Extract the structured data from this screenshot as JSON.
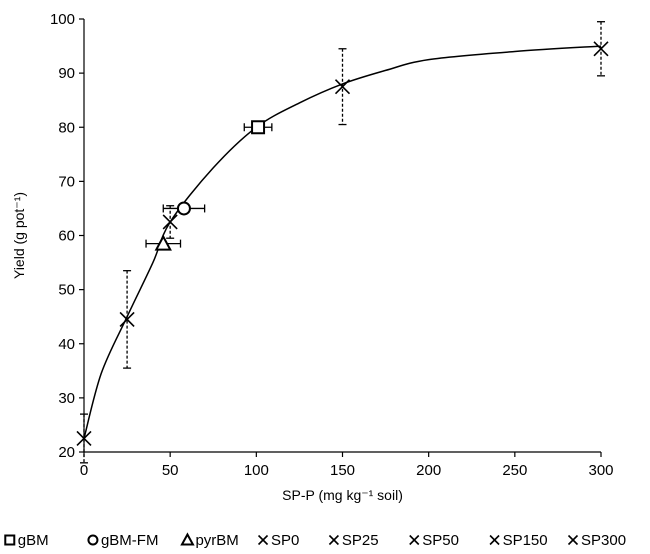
{
  "chart_data": {
    "type": "scatter",
    "xlabel": "SP-P (mg kg⁻¹ soil)",
    "ylabel": "Yield (g pot⁻¹)",
    "xlim": [
      0,
      300
    ],
    "ylim": [
      20,
      100
    ],
    "x_ticks": [
      "0",
      "50",
      "100",
      "150",
      "200",
      "250",
      "300"
    ],
    "y_ticks": [
      "20",
      "30",
      "40",
      "50",
      "60",
      "70",
      "80",
      "90",
      "100"
    ],
    "grid": false,
    "legend_position": "bottom",
    "fitted_curve": {
      "color": "#000000",
      "points": [
        [
          0,
          22.5
        ],
        [
          10,
          34.5
        ],
        [
          25,
          45
        ],
        [
          40,
          55
        ],
        [
          50,
          62.5
        ],
        [
          75,
          72.5
        ],
        [
          100,
          80
        ],
        [
          125,
          84.5
        ],
        [
          150,
          88
        ],
        [
          175,
          90.5
        ],
        [
          200,
          92.5
        ],
        [
          250,
          94
        ],
        [
          300,
          95
        ]
      ]
    },
    "series": [
      {
        "name": "gBM",
        "marker": "square",
        "x": 101,
        "y": 80,
        "x_err": 8,
        "y_err": 0
      },
      {
        "name": "gBM-FM",
        "marker": "circle",
        "x": 58,
        "y": 65,
        "x_err": 12,
        "y_err": 0
      },
      {
        "name": "pyrBM",
        "marker": "triangle",
        "x": 46,
        "y": 58.5,
        "x_err": 10,
        "y_err": 0
      },
      {
        "name": "SP0",
        "marker": "x",
        "x": 0,
        "y": 22.5,
        "x_err": 0,
        "y_err": 4.5
      },
      {
        "name": "SP25",
        "marker": "x",
        "x": 25,
        "y": 44.5,
        "x_err": 0,
        "y_err": 9
      },
      {
        "name": "SP50",
        "marker": "x",
        "x": 50,
        "y": 62.5,
        "x_err": 0,
        "y_err": 3
      },
      {
        "name": "SP150",
        "marker": "x",
        "x": 150,
        "y": 87.5,
        "x_err": 0,
        "y_err": 7
      },
      {
        "name": "SP300",
        "marker": "x",
        "x": 300,
        "y": 94.5,
        "x_err": 0,
        "y_err": 5
      }
    ]
  }
}
